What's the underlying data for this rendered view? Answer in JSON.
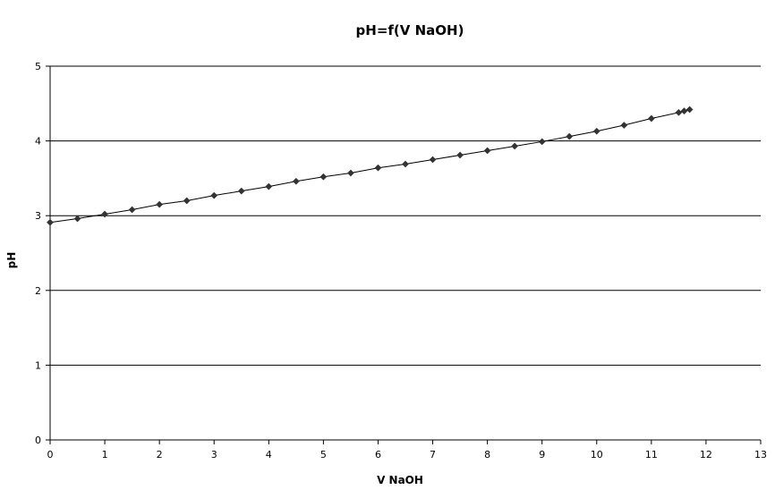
{
  "chart_data": {
    "type": "scatter",
    "title": "pH=f(V NaOH)",
    "xlabel": "V NaOH",
    "ylabel": "pH",
    "xlim": [
      0,
      13
    ],
    "ylim": [
      0,
      5
    ],
    "xticks": [
      "0",
      "1",
      "2",
      "3",
      "4",
      "5",
      "6",
      "7",
      "8",
      "9",
      "10",
      "11",
      "12",
      "13"
    ],
    "yticks": [
      "0",
      "1",
      "2",
      "3",
      "4",
      "5"
    ],
    "grid": "horizontal",
    "line_connected": true,
    "marker": "diamond",
    "colors": {
      "line": "#000000",
      "marker": "#333333",
      "grid": "#000000"
    },
    "series": [
      {
        "x": [
          0,
          0.5,
          1,
          1.5,
          2,
          2.5,
          3,
          3.5,
          4,
          4.5,
          5,
          5.5,
          6,
          6.5,
          7,
          7.5,
          8,
          8.5,
          9,
          9.5,
          10,
          10.5,
          11,
          11.5,
          11.6,
          11.7
        ],
        "y": [
          2.91,
          2.96,
          3.02,
          3.08,
          3.15,
          3.2,
          3.27,
          3.33,
          3.39,
          3.46,
          3.52,
          3.57,
          3.64,
          3.69,
          3.75,
          3.81,
          3.87,
          3.93,
          3.99,
          4.06,
          4.13,
          4.21,
          4.3,
          4.38,
          4.4,
          4.42
        ]
      }
    ]
  }
}
